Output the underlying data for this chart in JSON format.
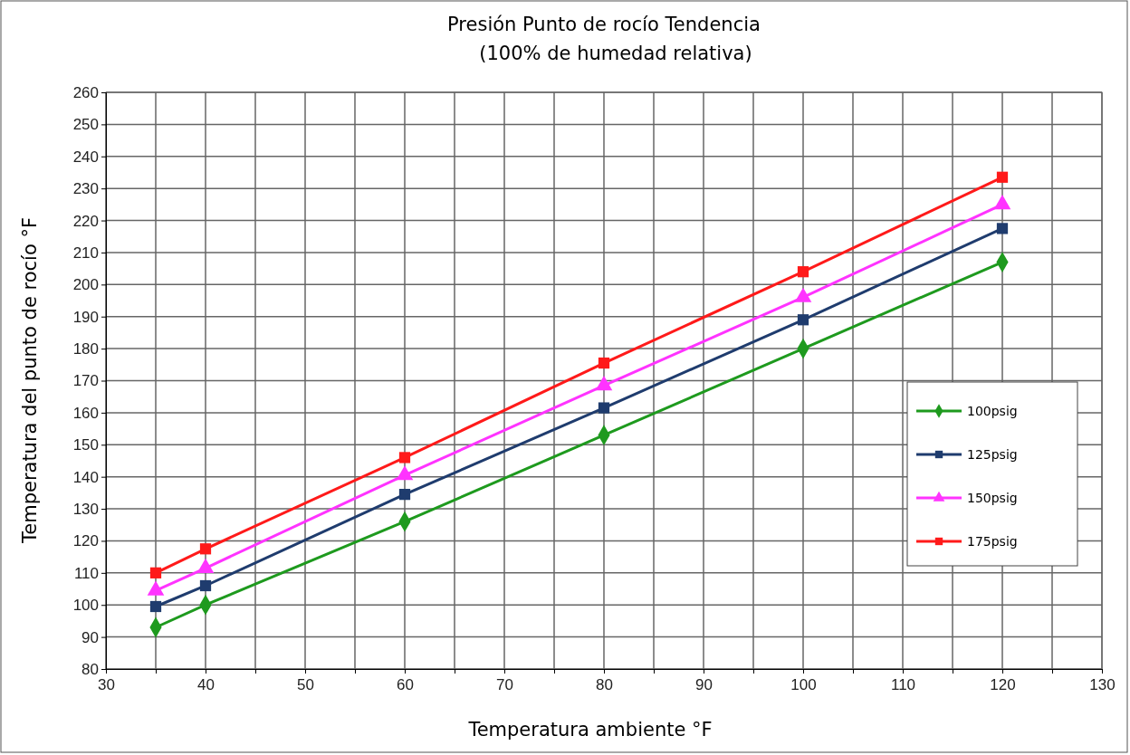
{
  "chart_data": {
    "type": "line",
    "title": "Presión Punto de rocío Tendencia",
    "subtitle": "(100% de humedad relativa)",
    "xlabel": "Temperatura ambiente °F",
    "ylabel": "Temperatura del punto de rocío °F",
    "x": [
      35,
      40,
      60,
      80,
      100,
      120
    ],
    "series": [
      {
        "name": "100psig",
        "color": "#1e9a1e",
        "marker": "diamond",
        "values": [
          93,
          100,
          126,
          153,
          180,
          207
        ]
      },
      {
        "name": "125psig",
        "color": "#1f3c6e",
        "marker": "square",
        "values": [
          99.5,
          106,
          134.5,
          161.5,
          189,
          217.5
        ]
      },
      {
        "name": "150psig",
        "color": "#ff33ff",
        "marker": "triangle",
        "values": [
          104.5,
          111.5,
          140.5,
          168.5,
          196,
          225
        ]
      },
      {
        "name": "175psig",
        "color": "#ff1a1a",
        "marker": "square",
        "values": [
          110,
          117.5,
          146,
          175.5,
          204,
          233.5
        ]
      }
    ],
    "xlim": [
      30,
      130
    ],
    "xticks": [
      30,
      {
        "value": 35,
        "label": null
      },
      40,
      {
        "value": 45,
        "label": null
      },
      50,
      {
        "value": 55,
        "label": null
      },
      60,
      {
        "value": 65,
        "label": null
      },
      70,
      {
        "value": 75,
        "label": null
      },
      80,
      {
        "value": 85,
        "label": null
      },
      90,
      {
        "value": 95,
        "label": null
      },
      100,
      {
        "value": 105,
        "label": null
      },
      110,
      {
        "value": 115,
        "label": null
      },
      120,
      {
        "value": 125,
        "label": null
      },
      130
    ],
    "ylim": [
      80,
      260
    ],
    "yticks": [
      80,
      90,
      100,
      110,
      120,
      130,
      140,
      150,
      160,
      170,
      180,
      190,
      200,
      210,
      220,
      230,
      240,
      250,
      260
    ],
    "grid": true,
    "legend": "right",
    "line_style": "solid"
  }
}
